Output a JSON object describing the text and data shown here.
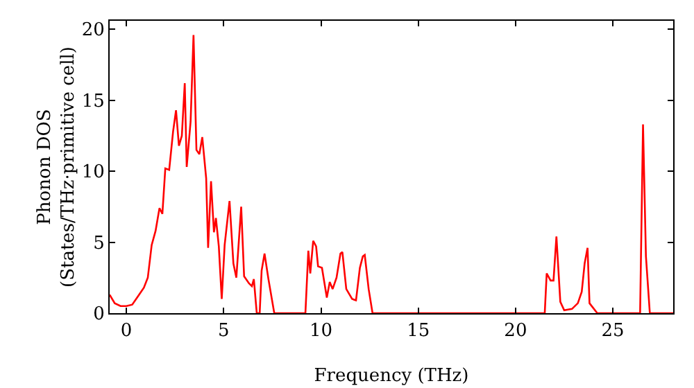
{
  "chart_data": {
    "type": "line",
    "xlabel": "Frequency (THz)",
    "ylabel": "Phonon DOS\n(States/THz·primitive cell)",
    "xlim": [
      -0.86,
      28.1
    ],
    "xticks": [
      0,
      5,
      10,
      15,
      20,
      25
    ],
    "ylim": [
      0,
      20.6
    ],
    "yticks": [
      0,
      5,
      10,
      15,
      20
    ],
    "grid": false,
    "marker": "none",
    "line_style": "solid",
    "series": [
      {
        "color": "#ff0000",
        "x": [
          -0.86,
          -0.6,
          -0.3,
          0,
          0.3,
          0.6,
          0.9,
          1.1,
          1.3,
          1.5,
          1.7,
          1.85,
          2.0,
          2.2,
          2.4,
          2.55,
          2.7,
          2.85,
          3.0,
          3.1,
          3.3,
          3.45,
          3.6,
          3.75,
          3.9,
          4.1,
          4.2,
          4.35,
          4.5,
          4.6,
          4.75,
          4.9,
          5.05,
          5.3,
          5.5,
          5.65,
          5.9,
          6.05,
          6.3,
          6.45,
          6.55,
          6.7,
          6.85,
          6.95,
          7.1,
          7.3,
          7.6,
          9.2,
          9.35,
          9.45,
          9.6,
          9.75,
          9.85,
          10.05,
          10.3,
          10.45,
          10.6,
          10.8,
          11.0,
          11.1,
          11.3,
          11.6,
          11.8,
          12.0,
          12.15,
          12.25,
          12.45,
          12.65,
          21.5,
          21.6,
          21.8,
          21.95,
          22.1,
          22.3,
          22.5,
          22.9,
          23.2,
          23.4,
          23.55,
          23.7,
          23.8,
          24.2,
          26.4,
          26.55,
          26.7,
          26.9,
          28.1
        ],
        "values": [
          1.3,
          0.7,
          0.5,
          0.5,
          0.6,
          1.2,
          1.8,
          2.5,
          4.8,
          5.8,
          7.4,
          7.0,
          10.2,
          10.1,
          12.8,
          14.3,
          11.8,
          12.5,
          16.2,
          10.3,
          13.5,
          19.6,
          11.5,
          11.2,
          12.4,
          9.5,
          4.6,
          9.3,
          5.7,
          6.7,
          4.7,
          1.0,
          4.8,
          7.9,
          3.5,
          2.5,
          7.5,
          2.6,
          2.1,
          1.9,
          2.4,
          0,
          0,
          3.0,
          4.2,
          2.4,
          0,
          0,
          4.4,
          2.8,
          5.1,
          4.7,
          3.3,
          3.2,
          1.1,
          2.2,
          1.7,
          2.5,
          4.2,
          4.3,
          1.7,
          1.0,
          0.9,
          3.2,
          4.0,
          4.1,
          1.7,
          0,
          0,
          2.8,
          2.3,
          2.3,
          5.4,
          0.8,
          0.2,
          0.3,
          0.7,
          1.5,
          3.5,
          4.6,
          0.7,
          0,
          0,
          13.3,
          4,
          0,
          0
        ]
      }
    ]
  }
}
